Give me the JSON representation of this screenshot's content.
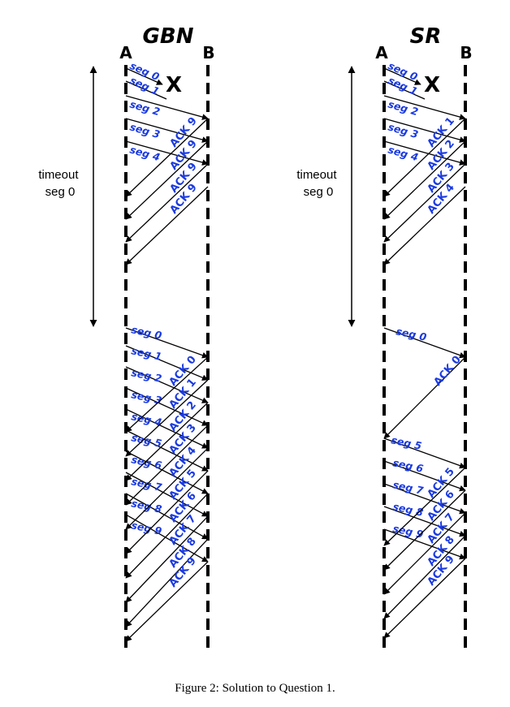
{
  "figure": {
    "caption": "Figure 2:  Solution to Question 1.",
    "loss_marker": "X",
    "timeout_label": [
      "timeout",
      "seg 0"
    ]
  },
  "panels": [
    {
      "id": "gbn",
      "title": "GBN",
      "sender": "A",
      "receiver": "B",
      "lost": [
        "seg 1"
      ],
      "first_round": {
        "segments": [
          "seg 0",
          "seg 1",
          "seg 2",
          "seg 3",
          "seg 4"
        ],
        "acks": [
          "ACK 9",
          "ACK 9",
          "ACK 9",
          "ACK 9"
        ]
      },
      "second_round": {
        "segments": [
          "seg 0",
          "seg 1",
          "seg 2",
          "seg 3",
          "seg 4",
          "seg 5",
          "seg 6",
          "seg 7",
          "seg 8",
          "seg 9"
        ],
        "acks": [
          "ACK 0",
          "ACK 1",
          "ACK 2",
          "ACK 3",
          "ACK 4",
          "ACK 5",
          "ACK 6",
          "ACK 7",
          "ACK 8",
          "ACK 9"
        ]
      }
    },
    {
      "id": "sr",
      "title": "SR",
      "sender": "A",
      "receiver": "B",
      "lost": [
        "seg 1"
      ],
      "first_round": {
        "segments": [
          "seg 0",
          "seg 1",
          "seg 2",
          "seg 3",
          "seg 4"
        ],
        "acks": [
          "ACK 1",
          "ACK 2",
          "ACK 3",
          "ACK 4"
        ]
      },
      "retransmission": {
        "segment": "seg 0",
        "ack": "ACK 0"
      },
      "second_round": {
        "segments": [
          "seg 5",
          "seg 6",
          "seg 7",
          "seg 8",
          "seg 9"
        ],
        "acks": [
          "ACK 5",
          "ACK 6",
          "ACK 7",
          "ACK 8",
          "ACK 9"
        ]
      }
    }
  ]
}
